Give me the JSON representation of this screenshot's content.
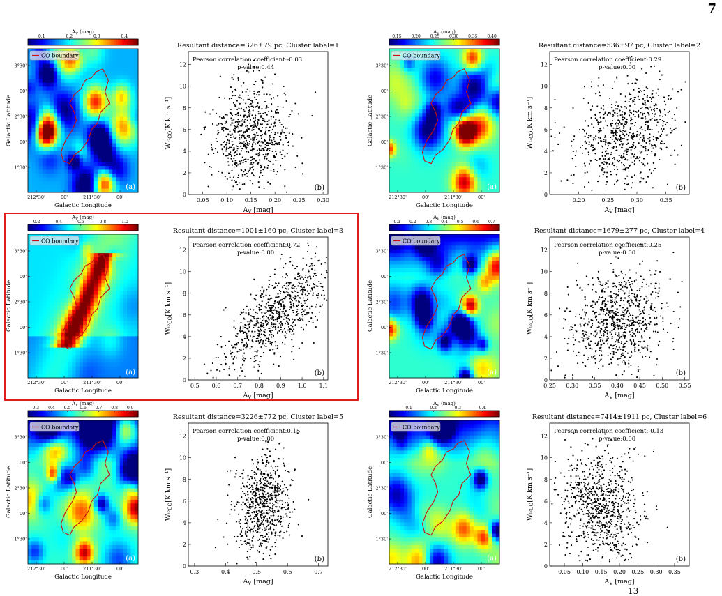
{
  "page": {
    "number": "7",
    "footer_fragment": "13"
  },
  "colormap": {
    "name": "jet",
    "stops": [
      "#00007f",
      "#0000ff",
      "#007fff",
      "#00ffff",
      "#7fff7f",
      "#ffff00",
      "#ff7f00",
      "#ff0000",
      "#7f0000"
    ],
    "contour_color": "#cc1010",
    "highlight_color": "#e11c1c"
  },
  "map_common": {
    "colorbar_label": "A",
    "colorbar_label_sub": "V",
    "colorbar_label_unit": " (mag)",
    "legend_label": "CO boundary",
    "ylabel": "Galactic Latitude",
    "xlabel": "Galactic Longitude",
    "y_ticks": [
      "3°30'",
      "00'",
      "2°30'",
      "00'",
      "1°30'"
    ],
    "x_ticks": [
      "212°30'",
      "00'",
      "211°30'",
      "00'"
    ],
    "tag": "(a)"
  },
  "scatter_common": {
    "ylabel": "W",
    "ylabel_sub": "¹²CO",
    "ylabel_unit": "[K km s⁻¹]",
    "xlabel": "A",
    "xlabel_sub": "V",
    "xlabel_unit": " [mag]",
    "tag": "(b)",
    "y_ticks": [
      "0",
      "2",
      "4",
      "6",
      "8",
      "10",
      "12"
    ]
  },
  "chart_data": [
    {
      "type": "heatmap",
      "cluster_label": 1,
      "colorbar_ticks": [
        "0.1",
        "0.2",
        "0.3",
        "0.4"
      ],
      "colorbar_range": [
        0.05,
        0.45
      ]
    },
    {
      "type": "scatter",
      "cluster_label": 1,
      "title": "Resultant distance=326±79 pc, Cluster label=1",
      "annotation_r": "Pearson correlation coefficient:-0.03",
      "annotation_p": "p-value:0.44",
      "pearson_r": -0.03,
      "xlim": [
        0.02,
        0.31
      ],
      "ylim": [
        0,
        13.2
      ],
      "x_ticks": [
        "0.05",
        "0.10",
        "0.15",
        "0.20",
        "0.25",
        "0.30"
      ],
      "x_tick_values": [
        0.05,
        0.1,
        0.15,
        0.2,
        0.25,
        0.3
      ],
      "x_center": 0.15,
      "x_spread": 0.038,
      "y_center": 5.5,
      "y_spread": 2.4,
      "n_points": 700
    },
    {
      "type": "heatmap",
      "cluster_label": 2,
      "colorbar_ticks": [
        "0.15",
        "0.20",
        "0.25",
        "0.30",
        "0.35",
        "0.40"
      ],
      "colorbar_range": [
        0.13,
        0.42
      ]
    },
    {
      "type": "scatter",
      "cluster_label": 2,
      "title": "Resultant distance=536±97 pc, Cluster label=2",
      "annotation_r": "Pearson correlation coefficient:0.29",
      "annotation_p": "p-value:0.00",
      "pearson_r": 0.29,
      "xlim": [
        0.15,
        0.39
      ],
      "ylim": [
        0,
        13.2
      ],
      "x_ticks": [
        "0.20",
        "0.25",
        "0.30",
        "0.35"
      ],
      "x_tick_values": [
        0.2,
        0.25,
        0.3,
        0.35
      ],
      "x_center": 0.28,
      "x_spread": 0.045,
      "y_center": 5.8,
      "y_spread": 2.5,
      "n_points": 700
    },
    {
      "type": "heatmap",
      "cluster_label": 3,
      "colorbar_ticks": [
        "0.2",
        "0.4",
        "0.6",
        "0.8",
        "1.0"
      ],
      "colorbar_range": [
        0.12,
        1.12
      ]
    },
    {
      "type": "scatter",
      "cluster_label": 3,
      "title": "Resultant distance=1001±160 pc, Cluster label=3",
      "annotation_r": "Pearson correlation coefficient:0.72",
      "annotation_p": "p-value:0.00",
      "pearson_r": 0.72,
      "xlim": [
        0.47,
        1.12
      ],
      "ylim": [
        0,
        13.2
      ],
      "x_ticks": [
        "0.5",
        "0.6",
        "0.7",
        "0.8",
        "0.9",
        "1.0",
        "1.1"
      ],
      "x_tick_values": [
        0.5,
        0.6,
        0.7,
        0.8,
        0.9,
        1.0,
        1.1
      ],
      "x_center": 0.88,
      "x_spread": 0.13,
      "y_center": 6.0,
      "y_spread": 2.6,
      "n_points": 800
    },
    {
      "type": "heatmap",
      "cluster_label": 4,
      "colorbar_ticks": [
        "0.1",
        "0.2",
        "0.3",
        "0.4",
        "0.5",
        "0.6",
        "0.7"
      ],
      "colorbar_range": [
        0.05,
        0.75
      ]
    },
    {
      "type": "scatter",
      "cluster_label": 4,
      "title": "Resultant distance=1679±277 pc, Cluster label=4",
      "annotation_r": "Pearson correlation coefficient:0.25",
      "annotation_p": "p-value:0.00",
      "pearson_r": 0.25,
      "xlim": [
        0.25,
        0.56
      ],
      "ylim": [
        0,
        13.2
      ],
      "x_ticks": [
        "0.25",
        "0.30",
        "0.35",
        "0.40",
        "0.45",
        "0.50",
        "0.55"
      ],
      "x_tick_values": [
        0.25,
        0.3,
        0.35,
        0.4,
        0.45,
        0.5,
        0.55
      ],
      "x_center": 0.4,
      "x_spread": 0.055,
      "y_center": 5.8,
      "y_spread": 2.4,
      "n_points": 800
    },
    {
      "type": "heatmap",
      "cluster_label": 5,
      "colorbar_ticks": [
        "0.3",
        "0.4",
        "0.5",
        "0.6",
        "0.7",
        "0.8",
        "0.9"
      ],
      "colorbar_range": [
        0.25,
        0.95
      ]
    },
    {
      "type": "scatter",
      "cluster_label": 5,
      "title": "Resultant distance=3226±772 pc, Cluster label=5",
      "annotation_r": "Pearson correlation coefficient:0.15",
      "annotation_p": "p-value:0.00",
      "pearson_r": 0.15,
      "xlim": [
        0.28,
        0.73
      ],
      "ylim": [
        0,
        13.2
      ],
      "x_ticks": [
        "0.3",
        "0.4",
        "0.5",
        "0.6",
        "0.7"
      ],
      "x_tick_values": [
        0.3,
        0.4,
        0.5,
        0.6,
        0.7
      ],
      "x_center": 0.52,
      "x_spread": 0.045,
      "y_center": 5.6,
      "y_spread": 2.3,
      "n_points": 700
    },
    {
      "type": "heatmap",
      "cluster_label": 6,
      "colorbar_ticks": [
        "0.1",
        "0.2",
        "0.3",
        "0.4"
      ],
      "colorbar_range": [
        0.02,
        0.47
      ]
    },
    {
      "type": "scatter",
      "cluster_label": 6,
      "title": "Resultant distance=7414±1911 pc, Cluster label=6",
      "annotation_r": "Pearson correlation coefficient:-0.13",
      "annotation_p": "p-value:0.00",
      "pearson_r": -0.13,
      "xlim": [
        0.01,
        0.39
      ],
      "ylim": [
        0,
        13.2
      ],
      "x_ticks": [
        "0.05",
        "0.10",
        "0.15",
        "0.20",
        "0.25",
        "0.30",
        "0.35"
      ],
      "x_tick_values": [
        0.05,
        0.1,
        0.15,
        0.2,
        0.25,
        0.3,
        0.35
      ],
      "x_center": 0.15,
      "x_spread": 0.055,
      "y_center": 5.4,
      "y_spread": 2.5,
      "n_points": 800
    }
  ]
}
